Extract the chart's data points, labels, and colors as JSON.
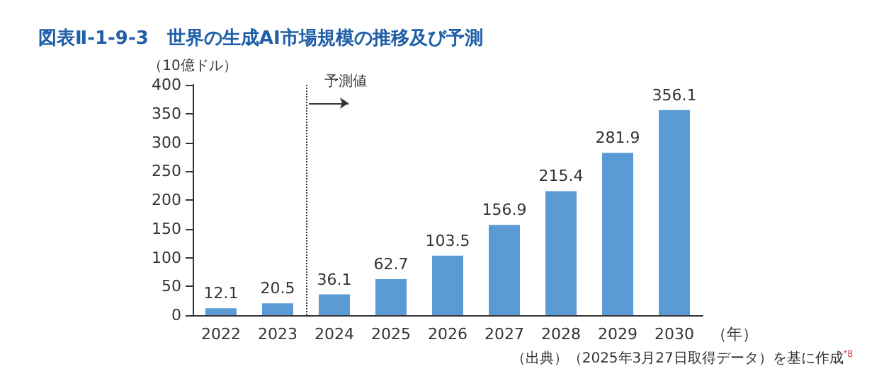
{
  "chart_data": {
    "type": "bar",
    "title": "図表Ⅱ-1-9-3　世界の生成AI市場規模の推移及び予測",
    "ylabel": "（10億ドル）",
    "xlabel": "（年）",
    "x": [
      2022,
      2023,
      2024,
      2025,
      2026,
      2027,
      2028,
      2029,
      2030
    ],
    "values": [
      12.1,
      20.5,
      36.1,
      62.7,
      103.5,
      156.9,
      215.4,
      281.9,
      356.1
    ],
    "color": "#5b9bd5",
    "data_labels": true,
    "xlim": [
      2021.5,
      2030.5
    ],
    "xticks": [
      2022,
      2023,
      2024,
      2025,
      2026,
      2027,
      2028,
      2029,
      2030
    ],
    "ylim": [
      0,
      400
    ],
    "yticks": [
      0,
      50,
      100,
      150,
      200,
      250,
      300,
      350,
      400
    ],
    "grid": false,
    "ref_lines": [
      {
        "axis": "x",
        "value": 2023.5,
        "label": "予測値",
        "line_style": "dotted",
        "color": "#333333"
      }
    ],
    "annotations": [
      "（出典）（2025年3月27日取得データ）を基に作成$^{*8}$"
    ]
  }
}
